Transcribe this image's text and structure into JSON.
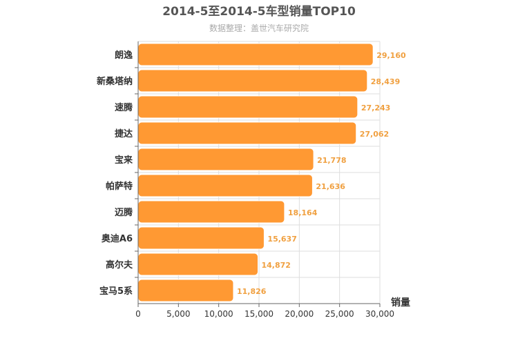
{
  "chart_data": {
    "type": "bar",
    "orientation": "horizontal",
    "title": "2014-5至2014-5车型销量TOP10",
    "subtitle": "数据整理：盖世汽车研究院",
    "xlabel": "销量",
    "ylabel": "",
    "categories": [
      "朗逸",
      "新桑塔纳",
      "速腾",
      "捷达",
      "宝来",
      "帕萨特",
      "迈腾",
      "奥迪A6",
      "高尔夫",
      "宝马5系"
    ],
    "values": [
      29160,
      28439,
      27243,
      27062,
      21778,
      21636,
      18164,
      15637,
      14872,
      11826
    ],
    "value_labels": [
      "29,160",
      "28,439",
      "27,243",
      "27,062",
      "21,778",
      "21,636",
      "18,164",
      "15,637",
      "14,872",
      "11,826"
    ],
    "xlim": [
      0,
      30000
    ],
    "ticks": [
      0,
      5000,
      10000,
      15000,
      20000,
      25000,
      30000
    ],
    "tick_labels": [
      "0",
      "5,000",
      "10,000",
      "15,000",
      "20,000",
      "25,000",
      "30,000"
    ],
    "grid": true,
    "legend": "none",
    "colors": {
      "bar": "#ff9933",
      "bar_border": "#ffffff",
      "value_label": "#f0a040"
    }
  }
}
